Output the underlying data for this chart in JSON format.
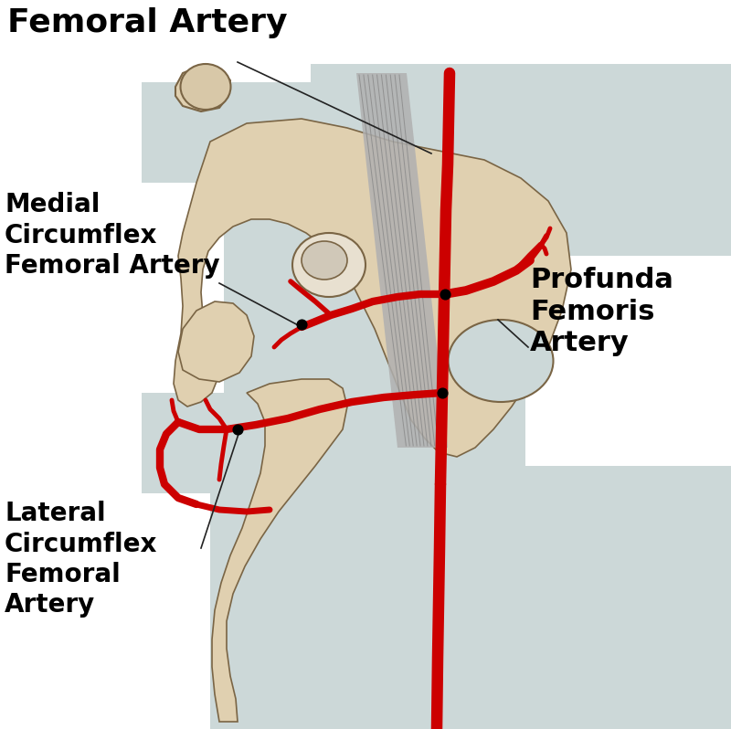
{
  "bg_color": "#ffffff",
  "panel_color": "#ccd8d8",
  "bone_color": "#e0d0b0",
  "bone_color2": "#d4c49a",
  "bone_outline": "#7a6545",
  "artery_color": "#cc0000",
  "nerve_fill": "#a8a8a8",
  "nerve_line": "#787878",
  "label_color": "#000000",
  "dot_color": "#000000",
  "labels": {
    "femoral_artery": "Femoral Artery",
    "medial_circumflex": "Medial\nCircumflex\nFemoral Artery",
    "profunda_femoris": "Profunda\nFemoris\nArtery",
    "lateral_circumflex": "Lateral\nCircumflex\nFemoral\nArtery"
  },
  "label_fontsizes": {
    "femoral_artery": 26,
    "medial_circumflex": 20,
    "profunda_femoris": 22,
    "lateral_circumflex": 20
  }
}
